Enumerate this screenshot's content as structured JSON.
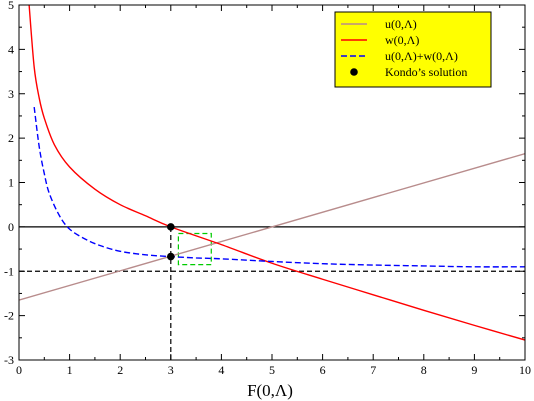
{
  "chart_data": {
    "type": "line",
    "title": "",
    "xlabel": "F(0,Λ)",
    "ylabel": "",
    "xlim": [
      0,
      10
    ],
    "ylim": [
      -3,
      5
    ],
    "xticks": [
      "0",
      "1",
      "2",
      "3",
      "4",
      "5",
      "6",
      "7",
      "8",
      "9",
      "10"
    ],
    "yticks": [
      "-3",
      "-2",
      "-1",
      "0",
      "1",
      "2",
      "3",
      "4",
      "5"
    ],
    "legend": {
      "placement": "top-right",
      "background": "#ffff00",
      "entries": [
        {
          "label": "u(0,Λ)",
          "color": "#b88c8c",
          "style": "solid"
        },
        {
          "label": "w(0,Λ)",
          "color": "#ff0000",
          "style": "solid"
        },
        {
          "label": "u(0,Λ)+w(0,Λ)",
          "color": "#0000ff",
          "style": "dashed"
        },
        {
          "label": "Kondo’s solution",
          "color": "#000000",
          "style": "marker"
        }
      ]
    },
    "series": [
      {
        "name": "u(0,Λ)",
        "color": "#b88c8c",
        "style": "solid",
        "x": [
          0,
          10
        ],
        "y": [
          -1.65,
          1.65
        ]
      },
      {
        "name": "w(0,Λ)",
        "color": "#ff0000",
        "style": "solid",
        "x": [
          0.2,
          0.3,
          0.4,
          0.5,
          0.7,
          1.0,
          1.5,
          2.0,
          2.5,
          3.0,
          4.0,
          5.0,
          6.0,
          7.0,
          8.0,
          9.0,
          10.0
        ],
        "y": [
          5.0,
          3.6,
          2.9,
          2.45,
          1.85,
          1.35,
          0.85,
          0.5,
          0.25,
          0.0,
          -0.4,
          -0.82,
          -1.18,
          -1.53,
          -1.88,
          -2.22,
          -2.55
        ]
      },
      {
        "name": "u(0,Λ)+w(0,Λ)",
        "color": "#0000ff",
        "style": "dashed",
        "x": [
          0.3,
          0.4,
          0.5,
          0.6,
          0.8,
          1.0,
          1.3,
          1.6,
          2.0,
          2.5,
          3.0,
          3.5,
          4.0,
          5.0,
          6.0,
          7.0,
          8.0,
          9.0,
          10.0
        ],
        "y": [
          2.7,
          1.8,
          1.2,
          0.75,
          0.25,
          -0.05,
          -0.27,
          -0.42,
          -0.55,
          -0.63,
          -0.67,
          -0.7,
          -0.72,
          -0.78,
          -0.83,
          -0.86,
          -0.88,
          -0.9,
          -0.9
        ]
      }
    ],
    "reference_lines": [
      {
        "orientation": "horizontal",
        "y": 0,
        "color": "#000000",
        "style": "solid"
      },
      {
        "orientation": "horizontal",
        "y": -1,
        "color": "#000000",
        "style": "dashed"
      },
      {
        "orientation": "vertical",
        "x": 3,
        "y_from": -3,
        "y_to": 0,
        "color": "#000000",
        "style": "dashed"
      }
    ],
    "points": [
      {
        "name": "Kondo’s solution",
        "x": 3,
        "y": 0
      },
      {
        "name": "Kondo’s solution",
        "x": 3,
        "y": -0.67
      }
    ],
    "highlight_box": {
      "x_from": 3.15,
      "x_to": 3.8,
      "y_from": -0.85,
      "y_to": -0.15,
      "color": "#00cc00",
      "style": "dashed"
    }
  }
}
